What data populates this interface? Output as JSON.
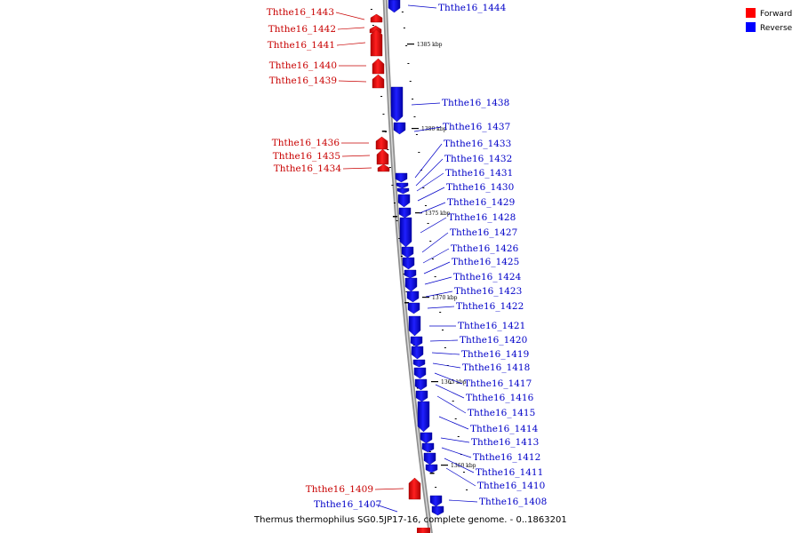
{
  "caption": "Thermus thermophilus SG0.5JP17-16, complete genome. - 0..1863201",
  "legend": [
    {
      "label": "Forward",
      "color": "#ff0000"
    },
    {
      "label": "Reverse",
      "color": "#0000ff"
    }
  ],
  "colors": {
    "forward": "#ff0000",
    "reverse": "#0000ff",
    "forward_label": "#c80000",
    "reverse_label": "#0000c8"
  },
  "ticks": [
    "1385 kbp",
    "1380 kbp",
    "1375 kbp",
    "1370 kbp",
    "1365 kbp",
    "1360 kbp"
  ],
  "forward_genes": [
    "Ththe16_1443",
    "Ththe16_1442",
    "Ththe16_1441",
    "Ththe16_1440",
    "Ththe16_1439",
    "Ththe16_1436",
    "Ththe16_1435",
    "Ththe16_1434",
    "Ththe16_1409"
  ],
  "reverse_genes": [
    "Ththe16_1444",
    "Ththe16_1438",
    "Ththe16_1437",
    "Ththe16_1433",
    "Ththe16_1432",
    "Ththe16_1431",
    "Ththe16_1430",
    "Ththe16_1429",
    "Ththe16_1428",
    "Ththe16_1427",
    "Ththe16_1426",
    "Ththe16_1425",
    "Ththe16_1424",
    "Ththe16_1423",
    "Ththe16_1422",
    "Ththe16_1421",
    "Ththe16_1420",
    "Ththe16_1419",
    "Ththe16_1418",
    "Ththe16_1417",
    "Ththe16_1416",
    "Ththe16_1415",
    "Ththe16_1414",
    "Ththe16_1413",
    "Ththe16_1412",
    "Ththe16_1411",
    "Ththe16_1410",
    "Ththe16_1408",
    "Ththe16_1407"
  ]
}
